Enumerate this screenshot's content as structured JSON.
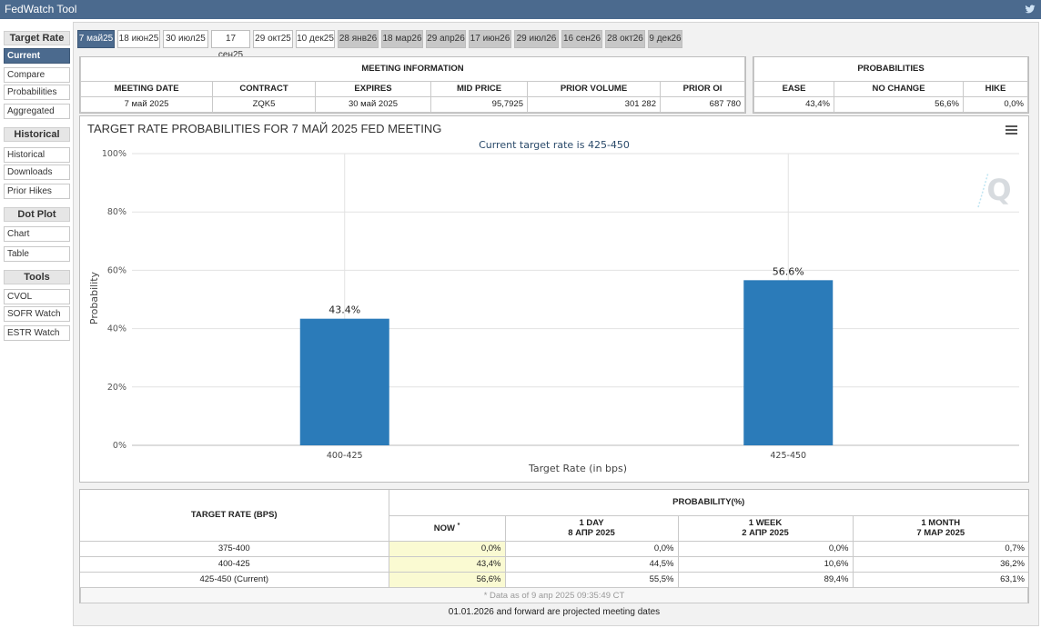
{
  "app": {
    "title": "FedWatch Tool"
  },
  "sidebar": {
    "sections": [
      {
        "label": "Target Rate",
        "items": [
          "Current",
          "Compare",
          "Probabilities",
          "Aggregated"
        ]
      },
      {
        "label": "Historical",
        "items": [
          "Historical",
          "Downloads",
          "Prior Hikes"
        ]
      },
      {
        "label": "Dot Plot",
        "items": [
          "Chart",
          "Table"
        ]
      },
      {
        "label": "Tools",
        "items": [
          "CVOL",
          "SOFR Watch",
          "ESTR Watch"
        ]
      }
    ],
    "active": "Current"
  },
  "tabs": [
    {
      "label": "7 май25",
      "state": "sel"
    },
    {
      "label": "18 июн25",
      "state": "on"
    },
    {
      "label": "30 июл25",
      "state": "on"
    },
    {
      "label": "17 сен25",
      "state": "on"
    },
    {
      "label": "29 окт25",
      "state": "on"
    },
    {
      "label": "10 дек25",
      "state": "on"
    },
    {
      "label": "28 янв26",
      "state": "off"
    },
    {
      "label": "18 мар26",
      "state": "off"
    },
    {
      "label": "29 апр26",
      "state": "off"
    },
    {
      "label": "17 июн26",
      "state": "off"
    },
    {
      "label": "29 июл26",
      "state": "off"
    },
    {
      "label": "16 сен26",
      "state": "off"
    },
    {
      "label": "28 окт26",
      "state": "off"
    },
    {
      "label": "9 дек26",
      "state": "off"
    }
  ],
  "meeting_info": {
    "header": "MEETING INFORMATION",
    "columns": [
      "MEETING DATE",
      "CONTRACT",
      "EXPIRES",
      "MID PRICE",
      "PRIOR VOLUME",
      "PRIOR OI"
    ],
    "values": [
      "7 май 2025",
      "ZQK5",
      "30 май 2025",
      "95,7925",
      "301 282",
      "687 780"
    ]
  },
  "probabilities": {
    "header": "PROBABILITIES",
    "columns": [
      "EASE",
      "NO CHANGE",
      "HIKE"
    ],
    "values": [
      "43,4%",
      "56,6%",
      "0,0%"
    ]
  },
  "chart": {
    "title": "TARGET RATE PROBABILITIES FOR 7 МАЙ 2025 FED MEETING",
    "subtitle": "Current target rate is 425-450"
  },
  "chart_data": {
    "type": "bar",
    "categories": [
      "400-425",
      "425-450"
    ],
    "values": [
      43.4,
      56.6
    ],
    "data_labels": [
      "43.4%",
      "56.6%"
    ],
    "xlabel": "Target Rate (in bps)",
    "ylabel": "Probability",
    "ylim": [
      0,
      100
    ],
    "yticks": [
      "0%",
      "20%",
      "40%",
      "60%",
      "80%",
      "100%"
    ],
    "bar_color": "#2b7bb9",
    "grid": true
  },
  "prob_table": {
    "col_target": "TARGET RATE (BPS)",
    "col_prob": "PROBABILITY(%)",
    "col_now": "NOW",
    "now_marker": "*",
    "col_1day": "1 DAY",
    "col_1day_date": "8 АПР 2025",
    "col_1week": "1 WEEK",
    "col_1week_date": "2 АПР 2025",
    "col_1month": "1 MONTH",
    "col_1month_date": "7 МАР 2025",
    "rows": [
      {
        "rate": "375-400",
        "now": "0,0%",
        "day": "0,0%",
        "week": "0,0%",
        "month": "0,7%"
      },
      {
        "rate": "400-425",
        "now": "43,4%",
        "day": "44,5%",
        "week": "10,6%",
        "month": "36,2%"
      },
      {
        "rate": "425-450 (Current)",
        "now": "56,6%",
        "day": "55,5%",
        "week": "89,4%",
        "month": "63,1%"
      }
    ],
    "as_of": "* Data as of 9 апр 2025 09:35:49 CT"
  },
  "footer": {
    "note": "01.01.2026 and forward are projected meeting dates"
  },
  "colors": {
    "accent": "#4b6a8e",
    "bar": "#2b7bb9",
    "now_highlight": "#fafad2"
  }
}
